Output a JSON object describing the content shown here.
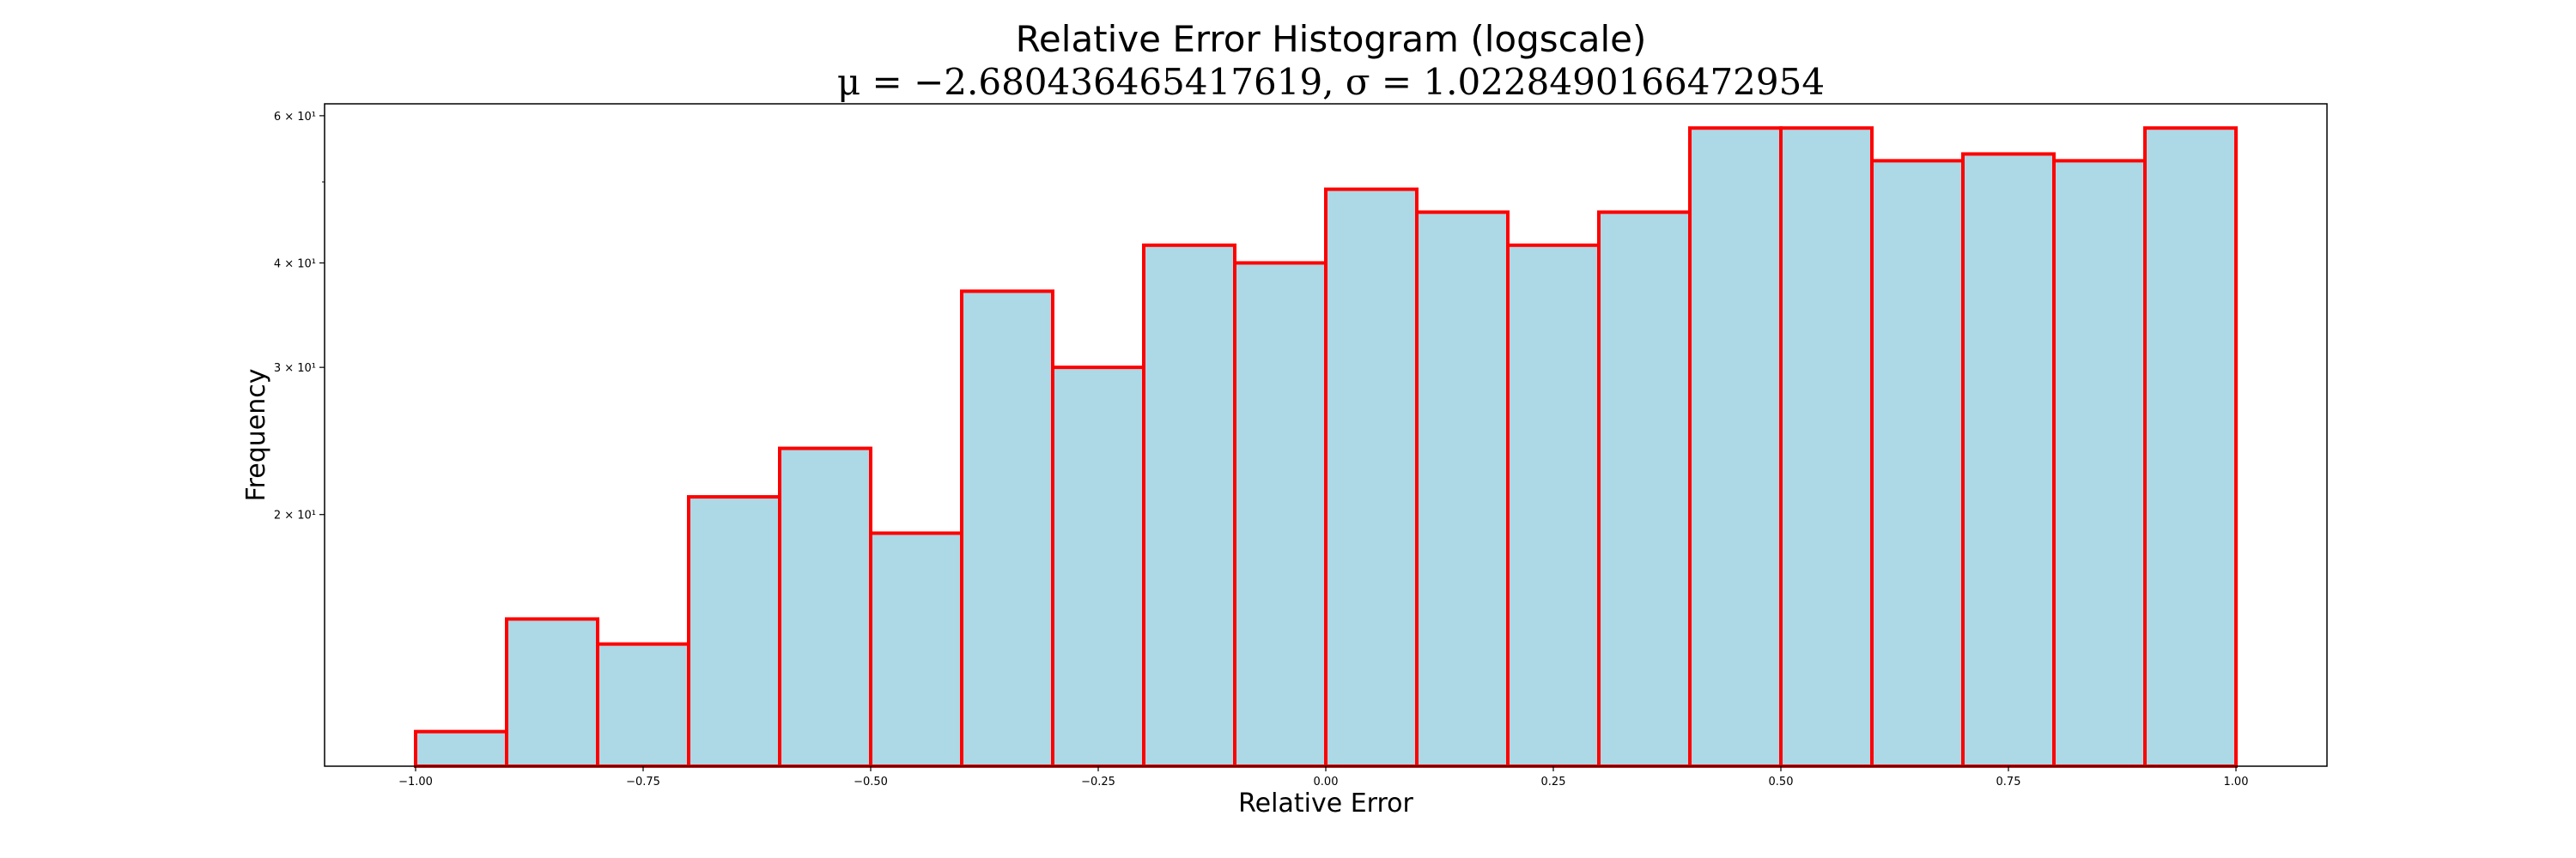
{
  "chart_data": {
    "type": "bar",
    "title": "Relative Error Histogram (logscale)",
    "subtitle": "μ = −2.680436465417619,  σ = 1.0228490166472954",
    "xlabel": "Relative Error",
    "ylabel": "Frequency",
    "yscale": "log",
    "grid": false,
    "bin_edges": [
      -1.0,
      -0.9,
      -0.8,
      -0.7,
      -0.6,
      -0.5,
      -0.4,
      -0.3,
      -0.2,
      -0.1,
      0.0,
      0.1,
      0.2,
      0.3,
      0.4,
      0.5,
      0.6,
      0.7,
      0.8,
      0.9,
      1.0
    ],
    "values": [
      11,
      15,
      14,
      21,
      24,
      19,
      37,
      30,
      42,
      40,
      49,
      46,
      42,
      46,
      58,
      58,
      53,
      54,
      53,
      58
    ],
    "xlim": [
      -1.1,
      1.1
    ],
    "ylim": [
      10,
      62
    ],
    "xticks": [
      -1.0,
      -0.75,
      -0.5,
      -0.25,
      0.0,
      0.25,
      0.5,
      0.75,
      1.0
    ],
    "xtick_labels": [
      "−1.00",
      "−0.75",
      "−0.50",
      "−0.25",
      "0.00",
      "0.25",
      "0.50",
      "0.75",
      "1.00"
    ],
    "yticks": [
      20,
      30,
      40,
      60
    ],
    "ytick_labels": [
      "2 × 10¹",
      "3 × 10¹",
      "4 × 10¹",
      "6 × 10¹"
    ],
    "yminor_ticks": [
      50
    ],
    "bar_fill": "#add8e6",
    "bar_edge": "#ff0000"
  }
}
